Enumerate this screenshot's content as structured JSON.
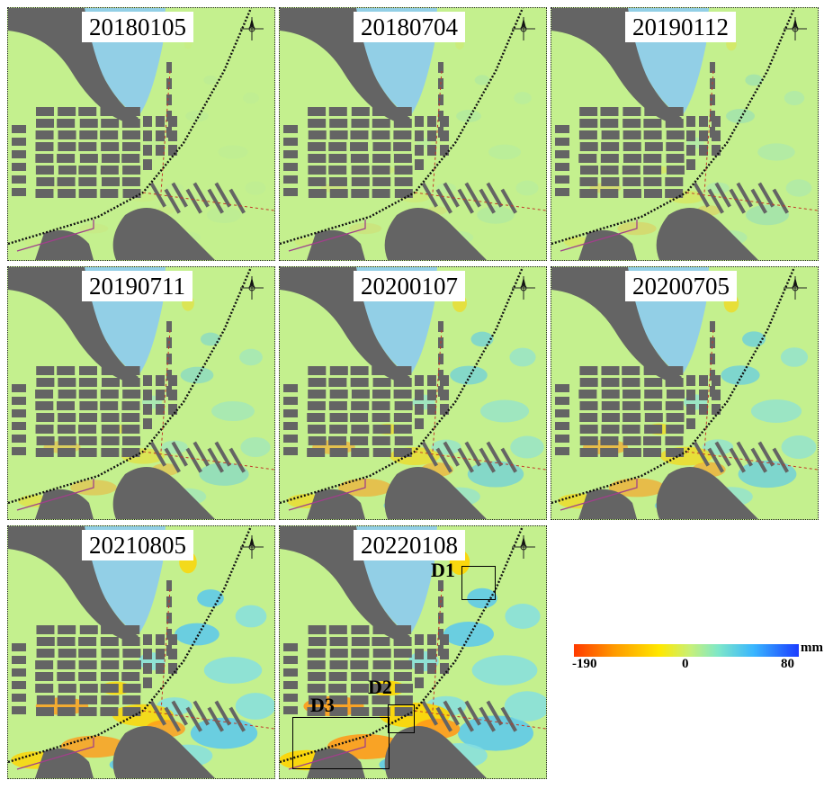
{
  "panels": [
    {
      "date": "20180105",
      "intensity": 0.05
    },
    {
      "date": "20180704",
      "intensity": 0.12
    },
    {
      "date": "20190112",
      "intensity": 0.25
    },
    {
      "date": "20190711",
      "intensity": 0.4
    },
    {
      "date": "20200107",
      "intensity": 0.55
    },
    {
      "date": "20200705",
      "intensity": 0.6
    },
    {
      "date": "20210805",
      "intensity": 0.8
    },
    {
      "date": "20220108",
      "intensity": 1.0
    }
  ],
  "regions": [
    {
      "label": "D1"
    },
    {
      "label": "D2"
    },
    {
      "label": "D3"
    }
  ],
  "legend": {
    "min_label": "-190",
    "mid_label": "0",
    "max_label": "80",
    "unit": "mm",
    "colors": [
      "#ff3a00",
      "#ff9a00",
      "#ffe800",
      "#c6f07a",
      "#7fe8c8",
      "#39b6ff",
      "#1b3cff"
    ]
  },
  "colors": {
    "background": "#c4f08e",
    "water": "#92cfe6",
    "buildings": "#646464"
  }
}
